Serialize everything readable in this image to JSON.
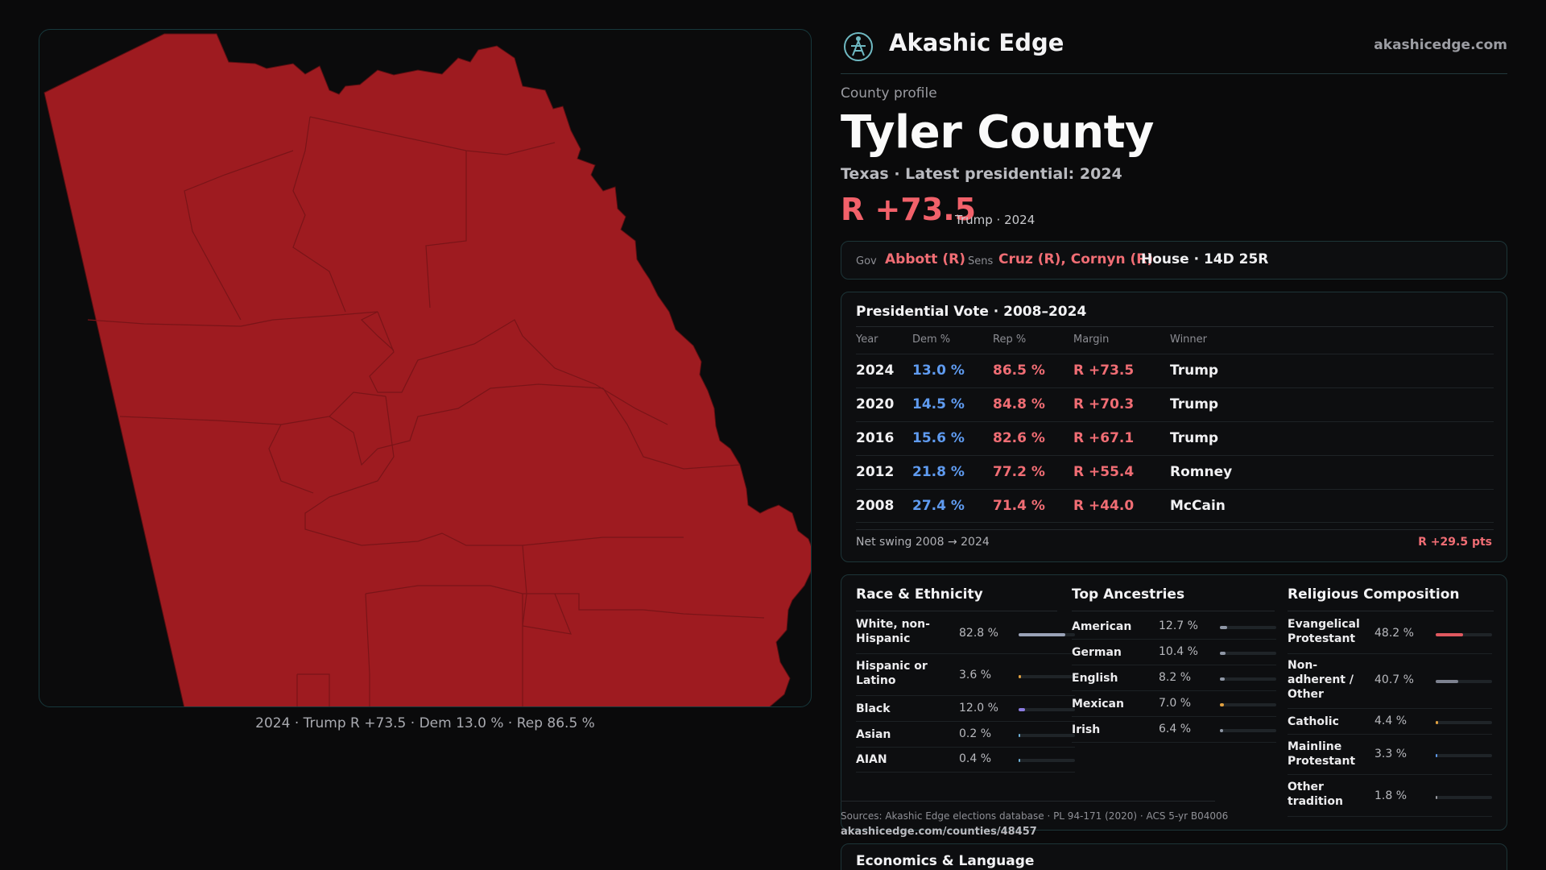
{
  "brand": {
    "name": "Akashic Edge",
    "url": "akashicedge.com",
    "logo_icon": "stylized-figure-logo-icon"
  },
  "map": {
    "fill_color": "#9e1b20",
    "caption": "2024 · Trump R +73.5 · Dem 13.0 % · Rep 86.5 %"
  },
  "profile": {
    "eyebrow": "County profile",
    "name": "Tyler County",
    "subtitle": "Texas · Latest presidential: 2024",
    "margin": "R +73.5",
    "margin_note": "Trump · 2024"
  },
  "officials": {
    "gov_label": "Gov",
    "gov": "Abbott (R)",
    "sens_label": "Sens",
    "sens": "Cruz (R), Cornyn (R)",
    "house": "House · 14D 25R"
  },
  "votes": {
    "title": "Presidential Vote · 2008–2024",
    "headers": {
      "year": "Year",
      "dem": "Dem %",
      "rep": "Rep %",
      "margin": "Margin",
      "winner": "Winner"
    },
    "rows": [
      {
        "year": "2024",
        "dem": "13.0 %",
        "rep": "86.5 %",
        "margin": "R +73.5",
        "winner": "Trump"
      },
      {
        "year": "2020",
        "dem": "14.5 %",
        "rep": "84.8 %",
        "margin": "R +70.3",
        "winner": "Trump"
      },
      {
        "year": "2016",
        "dem": "15.6 %",
        "rep": "82.6 %",
        "margin": "R +67.1",
        "winner": "Trump"
      },
      {
        "year": "2012",
        "dem": "21.8 %",
        "rep": "77.2 %",
        "margin": "R +55.4",
        "winner": "Romney"
      },
      {
        "year": "2008",
        "dem": "27.4 %",
        "rep": "71.4 %",
        "margin": "R +44.0",
        "winner": "McCain"
      }
    ],
    "swing_label": "Net swing 2008 → 2024",
    "swing_value": "R +29.5 pts"
  },
  "race": {
    "title": "Race & Ethnicity",
    "items": [
      {
        "name": "White, non-Hispanic",
        "pct": "82.8 %",
        "value": 82.8,
        "color": "#9aa3b8"
      },
      {
        "name": "Hispanic or Latino",
        "pct": "3.6 %",
        "value": 3.6,
        "color": "#e0a040"
      },
      {
        "name": "Black",
        "pct": "12.0 %",
        "value": 12.0,
        "color": "#8b7be0"
      },
      {
        "name": "Asian",
        "pct": "0.2 %",
        "value": 0.2,
        "color": "#6fb2d8"
      },
      {
        "name": "AIAN",
        "pct": "0.4 %",
        "value": 0.4,
        "color": "#6fb2d8"
      }
    ]
  },
  "ancestry": {
    "title": "Top Ancestries",
    "items": [
      {
        "name": "American",
        "pct": "12.7 %",
        "value": 12.7,
        "color": "#8f97a6"
      },
      {
        "name": "German",
        "pct": "10.4 %",
        "value": 10.4,
        "color": "#8f97a6"
      },
      {
        "name": "English",
        "pct": "8.2 %",
        "value": 8.2,
        "color": "#8f97a6"
      },
      {
        "name": "Mexican",
        "pct": "7.0 %",
        "value": 7.0,
        "color": "#e0a040"
      },
      {
        "name": "Irish",
        "pct": "6.4 %",
        "value": 6.4,
        "color": "#8f97a6"
      }
    ]
  },
  "religion": {
    "title": "Religious Composition",
    "items": [
      {
        "name": "Evangelical Protestant",
        "pct": "48.2 %",
        "value": 48.2,
        "color": "#e0585f"
      },
      {
        "name": "Non-adherent / Other",
        "pct": "40.7 %",
        "value": 40.7,
        "color": "#7d8290"
      },
      {
        "name": "Catholic",
        "pct": "4.4 %",
        "value": 4.4,
        "color": "#e0a040"
      },
      {
        "name": "Mainline Protestant",
        "pct": "3.3 %",
        "value": 3.3,
        "color": "#5f9bf0"
      },
      {
        "name": "Other tradition",
        "pct": "1.8 %",
        "value": 1.8,
        "color": "#9a9ba1"
      }
    ]
  },
  "sources": {
    "text": "Sources: Akashic Edge elections database · PL 94-171 (2020) · ACS 5-yr B04006",
    "url": "akashicedge.com/counties/48457"
  },
  "econ": {
    "title": "Economics & Language"
  }
}
